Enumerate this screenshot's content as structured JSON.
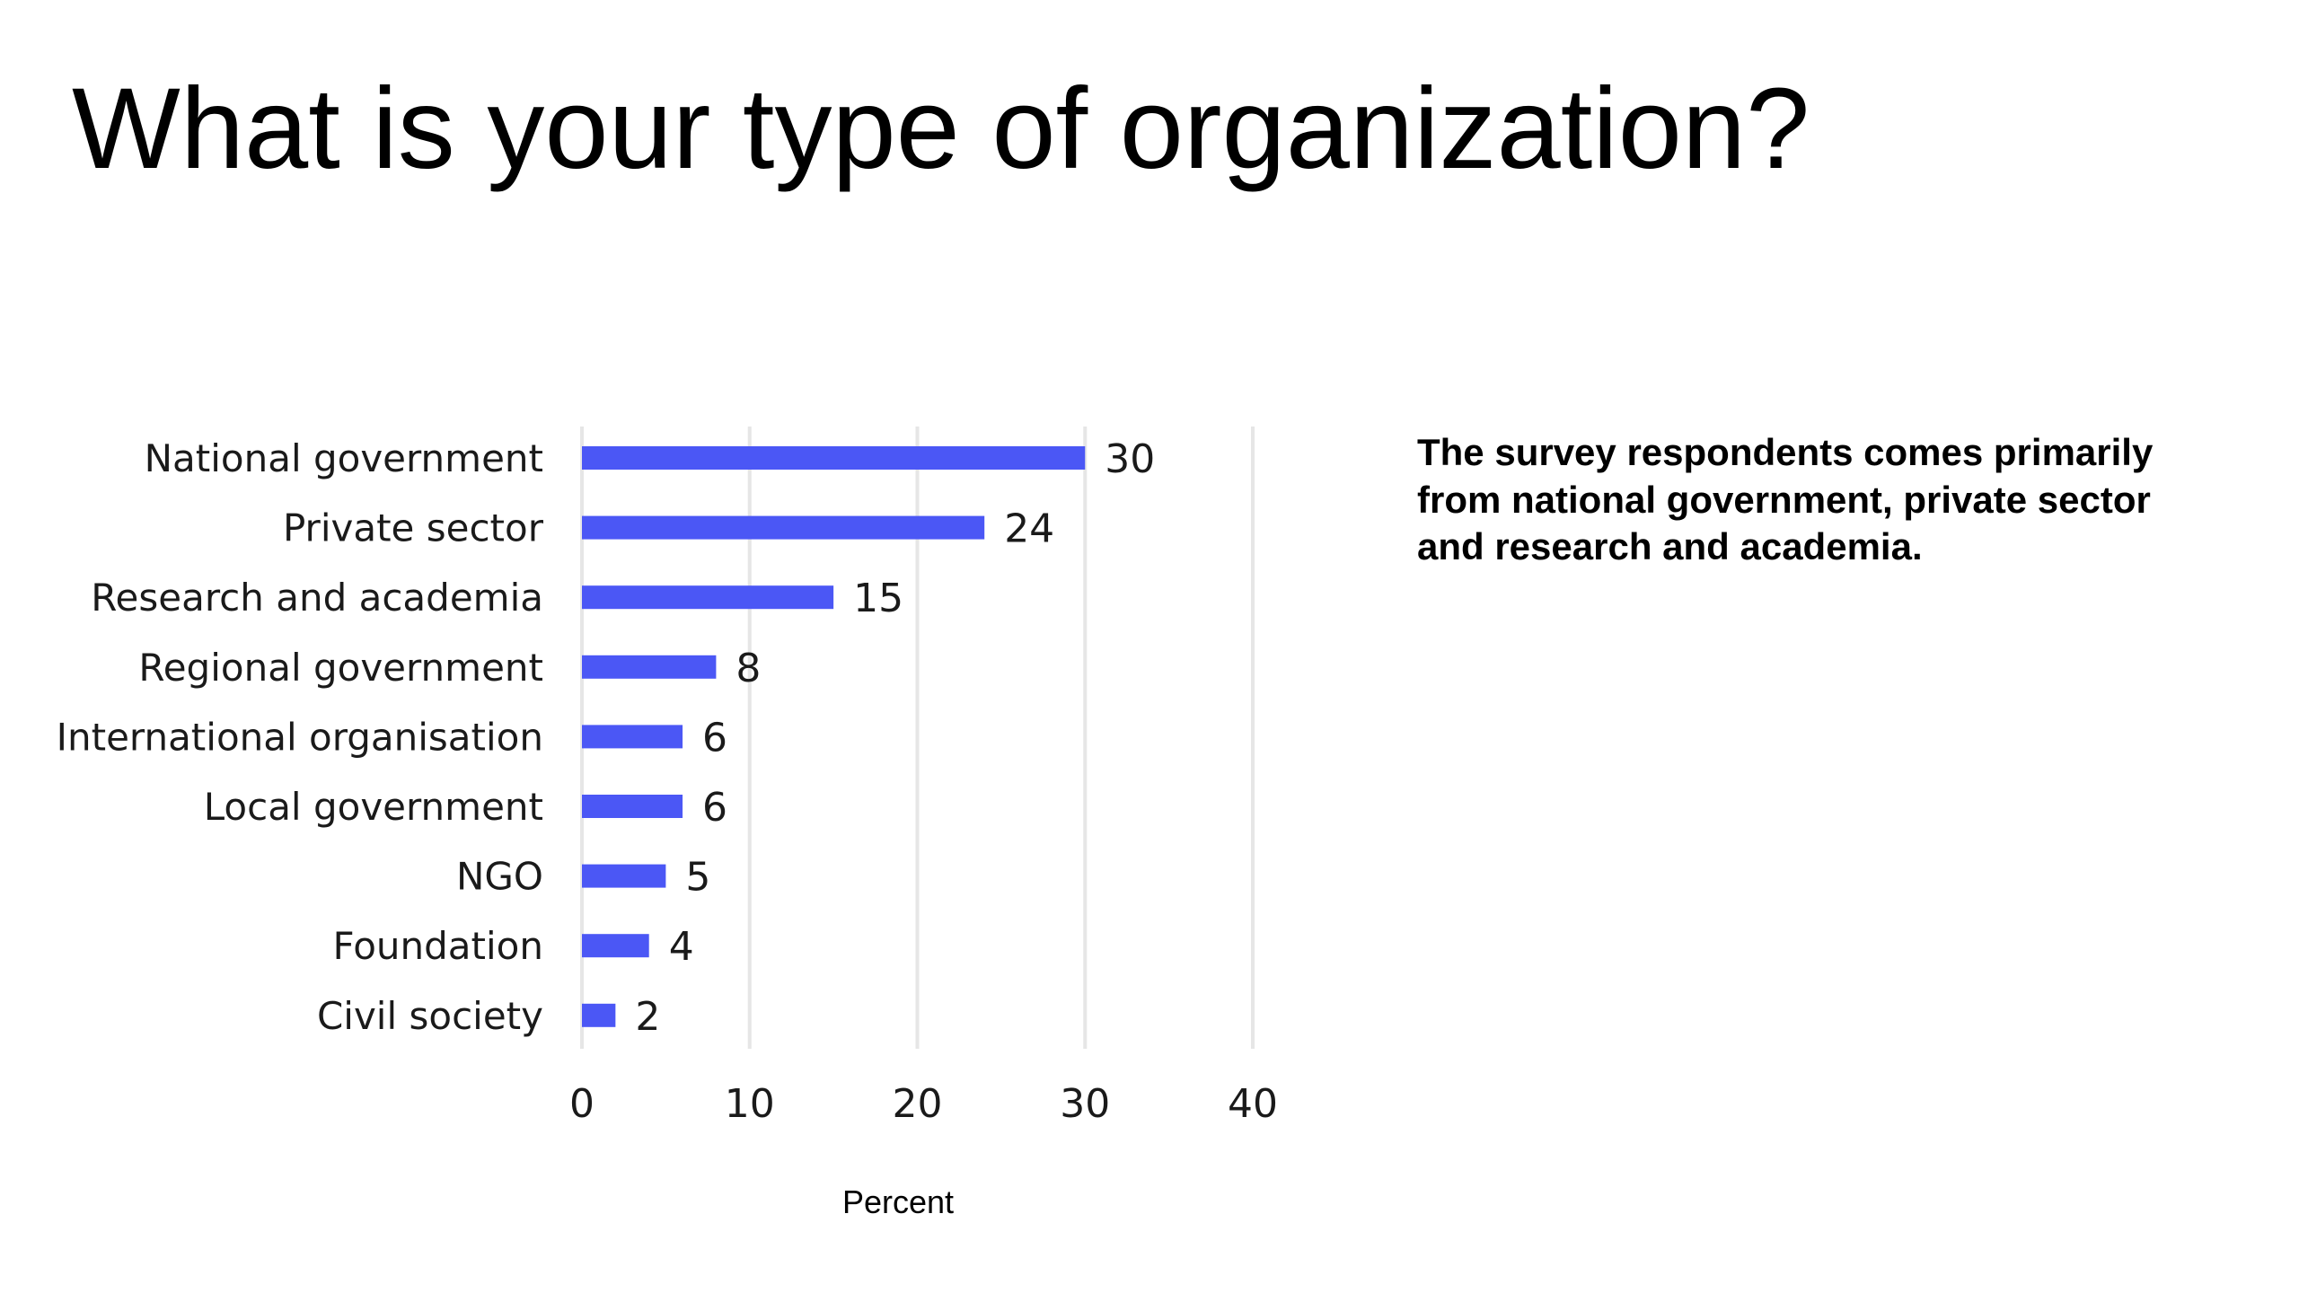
{
  "title": "What is your type of organization?",
  "summary": "The survey respondents comes primarily from national government, private sector and research and academia.",
  "colors": {
    "bar": "#4b57f5",
    "grid": "#e6e6e6",
    "text": "#1a1a1a"
  },
  "chart_data": {
    "type": "bar",
    "orientation": "horizontal",
    "categories": [
      "National government",
      "Private sector",
      "Research and academia",
      "Regional government",
      "International organisation",
      "Local government",
      "NGO",
      "Foundation",
      "Civil society"
    ],
    "values": [
      30,
      24,
      15,
      8,
      6,
      6,
      5,
      4,
      2
    ],
    "xlabel": "Percent",
    "ylabel": "",
    "xlim": [
      0,
      40
    ],
    "xticks": [
      0,
      10,
      20,
      30,
      40
    ],
    "grid": "vertical",
    "data_labels": true
  }
}
